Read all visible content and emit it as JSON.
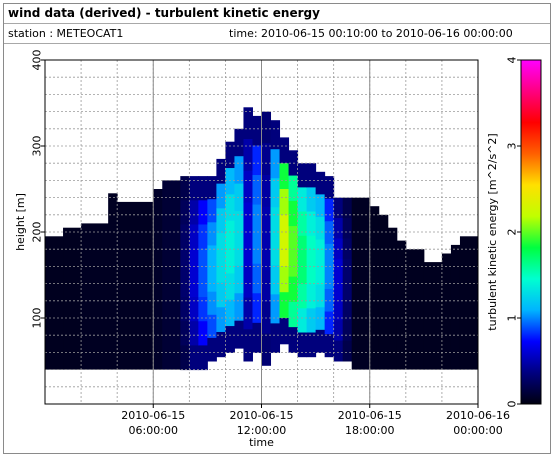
{
  "header": {
    "title": "wind data (derived) - turbulent kinetic energy",
    "station": "station : METEOCAT1",
    "time_range": "time: 2010-06-15 00:10:00 to 2010-06-16 00:00:00"
  },
  "chart_data": {
    "type": "heatmap",
    "xlabel": "time",
    "ylabel": "height [m]",
    "colorbar_label": "turbulent kinetic energy [m^2/s^2]",
    "x_range_hours": [
      0,
      24
    ],
    "x_ticks": [
      {
        "hour": 6,
        "line1": "2010-06-15",
        "line2": "06:00:00"
      },
      {
        "hour": 12,
        "line1": "2010-06-15",
        "line2": "12:00:00"
      },
      {
        "hour": 18,
        "line1": "2010-06-15",
        "line2": "18:00:00"
      },
      {
        "hour": 24,
        "line1": "2010-06-16",
        "line2": "00:00:00"
      }
    ],
    "y_range": [
      0,
      400
    ],
    "y_ticks": [
      100,
      200,
      300,
      400
    ],
    "color_range": [
      0,
      4
    ],
    "color_ticks": [
      0,
      1,
      2,
      3,
      4
    ],
    "colormap": [
      "#000010",
      "#000080",
      "#0000ff",
      "#00b4ff",
      "#00ffd0",
      "#00ff40",
      "#c0ff00",
      "#ffe000",
      "#ff6000",
      "#ff0000",
      "#ff0080",
      "#ff00ff"
    ],
    "grid": true,
    "columns": [
      {
        "t0": 0.0,
        "t1": 1.0,
        "base": 40,
        "top": 195,
        "tke": 0.05
      },
      {
        "t0": 1.0,
        "t1": 2.0,
        "base": 40,
        "top": 205,
        "tke": 0.05
      },
      {
        "t0": 2.0,
        "t1": 3.5,
        "base": 40,
        "top": 210,
        "tke": 0.06
      },
      {
        "t0": 3.5,
        "t1": 4.0,
        "base": 40,
        "top": 245,
        "tke": 0.06
      },
      {
        "t0": 4.0,
        "t1": 6.0,
        "base": 40,
        "top": 235,
        "tke": 0.06
      },
      {
        "t0": 6.0,
        "t1": 6.5,
        "base": 40,
        "top": 250,
        "tke": 0.08
      },
      {
        "t0": 6.5,
        "t1": 7.5,
        "base": 40,
        "top": 260,
        "tke": 0.12
      },
      {
        "t0": 7.5,
        "t1": 8.0,
        "base": 40,
        "top": 265,
        "tke": 0.3
      },
      {
        "t0": 8.0,
        "t1": 8.5,
        "base": 40,
        "top": 265,
        "tke": 0.6
      },
      {
        "t0": 8.5,
        "t1": 9.0,
        "base": 40,
        "top": 265,
        "tke": 0.9
      },
      {
        "t0": 9.0,
        "t1": 9.5,
        "base": 50,
        "top": 265,
        "tke": 1.1
      },
      {
        "t0": 9.5,
        "t1": 10.0,
        "base": 55,
        "top": 285,
        "tke": 1.3
      },
      {
        "t0": 10.0,
        "t1": 10.5,
        "base": 60,
        "top": 305,
        "tke": 1.4
      },
      {
        "t0": 10.5,
        "t1": 11.0,
        "base": 65,
        "top": 320,
        "tke": 1.3
      },
      {
        "t0": 11.0,
        "t1": 11.5,
        "base": 50,
        "top": 345,
        "tke": 0.6
      },
      {
        "t0": 11.5,
        "t1": 12.0,
        "base": 60,
        "top": 335,
        "tke": 1.0
      },
      {
        "t0": 12.0,
        "t1": 12.5,
        "base": 45,
        "top": 340,
        "tke": 0.5
      },
      {
        "t0": 12.5,
        "t1": 13.0,
        "base": 60,
        "top": 330,
        "tke": 1.3
      },
      {
        "t0": 13.0,
        "t1": 13.5,
        "base": 70,
        "top": 310,
        "tke": 2.3
      },
      {
        "t0": 13.5,
        "t1": 14.0,
        "base": 60,
        "top": 295,
        "tke": 2.0
      },
      {
        "t0": 14.0,
        "t1": 14.5,
        "base": 55,
        "top": 280,
        "tke": 1.7
      },
      {
        "t0": 14.5,
        "t1": 15.0,
        "base": 55,
        "top": 280,
        "tke": 1.5
      },
      {
        "t0": 15.0,
        "t1": 15.5,
        "base": 60,
        "top": 270,
        "tke": 1.4
      },
      {
        "t0": 15.5,
        "t1": 16.0,
        "base": 55,
        "top": 265,
        "tke": 1.0
      },
      {
        "t0": 16.0,
        "t1": 16.5,
        "base": 50,
        "top": 240,
        "tke": 0.6
      },
      {
        "t0": 16.5,
        "t1": 17.0,
        "base": 50,
        "top": 240,
        "tke": 0.3
      },
      {
        "t0": 17.0,
        "t1": 18.0,
        "base": 40,
        "top": 240,
        "tke": 0.06
      },
      {
        "t0": 18.0,
        "t1": 18.5,
        "base": 40,
        "top": 230,
        "tke": 0.05
      },
      {
        "t0": 18.5,
        "t1": 19.0,
        "base": 40,
        "top": 220,
        "tke": 0.05
      },
      {
        "t0": 19.0,
        "t1": 19.5,
        "base": 40,
        "top": 205,
        "tke": 0.05
      },
      {
        "t0": 19.5,
        "t1": 20.0,
        "base": 40,
        "top": 190,
        "tke": 0.05
      },
      {
        "t0": 20.0,
        "t1": 21.0,
        "base": 40,
        "top": 180,
        "tke": 0.05
      },
      {
        "t0": 21.0,
        "t1": 22.0,
        "base": 40,
        "top": 165,
        "tke": 0.05
      },
      {
        "t0": 22.0,
        "t1": 22.5,
        "base": 40,
        "top": 175,
        "tke": 0.05
      },
      {
        "t0": 22.5,
        "t1": 23.0,
        "base": 40,
        "top": 185,
        "tke": 0.05
      },
      {
        "t0": 23.0,
        "t1": 24.0,
        "base": 40,
        "top": 195,
        "tke": 0.05
      }
    ]
  }
}
